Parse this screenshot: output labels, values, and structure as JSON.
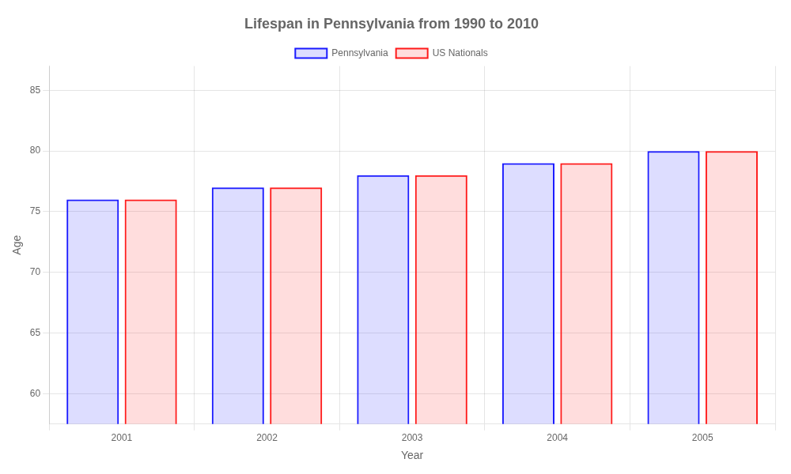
{
  "chart_data": {
    "type": "bar",
    "title": "Lifespan in Pennsylvania from 1990 to 2010",
    "x_label": "Year",
    "y_label": "Age",
    "categories": [
      "2001",
      "2002",
      "2003",
      "2004",
      "2005"
    ],
    "series": [
      {
        "name": "Pennsylvania",
        "color": "#1a1aff",
        "values": [
          76,
          77,
          78,
          79,
          80
        ]
      },
      {
        "name": "US Nationals",
        "color": "#ff1a1a",
        "values": [
          76,
          77,
          78,
          79,
          80
        ]
      }
    ],
    "ylim": [
      57.5,
      87
    ],
    "yticks": [
      60,
      65,
      70,
      75,
      80,
      85
    ],
    "grid": true,
    "legend": "top"
  }
}
